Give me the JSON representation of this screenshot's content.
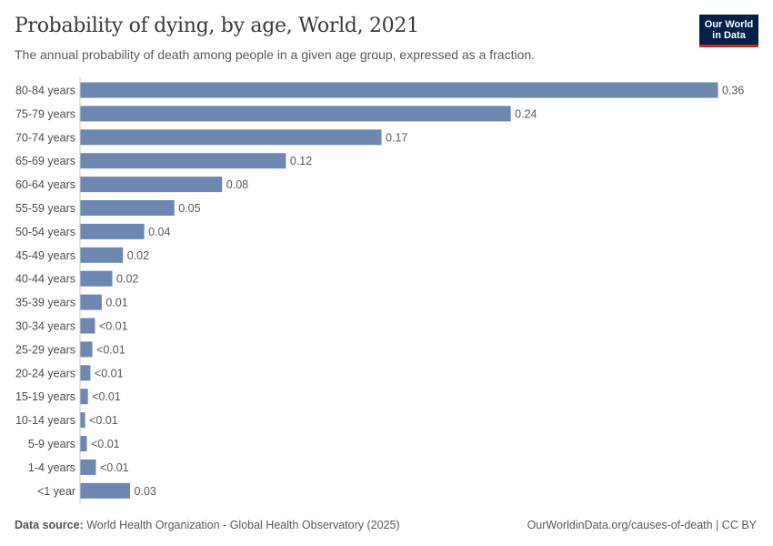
{
  "header": {
    "title": "Probability of dying, by age, World, 2021",
    "subtitle": "The annual probability of death among people in a given age group, expressed as a fraction.",
    "logo_text": "Our World in Data"
  },
  "footer": {
    "source_label": "Data source:",
    "source": "World Health Organization - Global Health Observatory (2025)",
    "attribution": "OurWorldinData.org/causes-of-death | CC BY"
  },
  "chart_data": {
    "type": "bar",
    "orientation": "horizontal",
    "title": "Probability of dying, by age, World, 2021",
    "bar_color": "#6d87b0",
    "categories": [
      "80-84 years",
      "75-79 years",
      "70-74 years",
      "65-69 years",
      "60-64 years",
      "55-59 years",
      "50-54 years",
      "45-49 years",
      "40-44 years",
      "35-39 years",
      "30-34 years",
      "25-29 years",
      "20-24 years",
      "15-19 years",
      "10-14 years",
      "5-9 years",
      "1-4 years",
      "<1 year"
    ],
    "values": [
      0.36,
      0.243,
      0.17,
      0.116,
      0.08,
      0.053,
      0.036,
      0.024,
      0.018,
      0.012,
      0.0082,
      0.0067,
      0.0056,
      0.0042,
      0.0026,
      0.0036,
      0.0087,
      0.028
    ],
    "labels": [
      "0.36",
      "0.24",
      "0.17",
      "0.12",
      "0.08",
      "0.05",
      "0.04",
      "0.02",
      "0.02",
      "0.01",
      "<0.01",
      "<0.01",
      "<0.01",
      "<0.01",
      "<0.01",
      "<0.01",
      "<0.01",
      "0.03"
    ],
    "xlim": [
      0,
      0.36
    ],
    "grid": false
  }
}
